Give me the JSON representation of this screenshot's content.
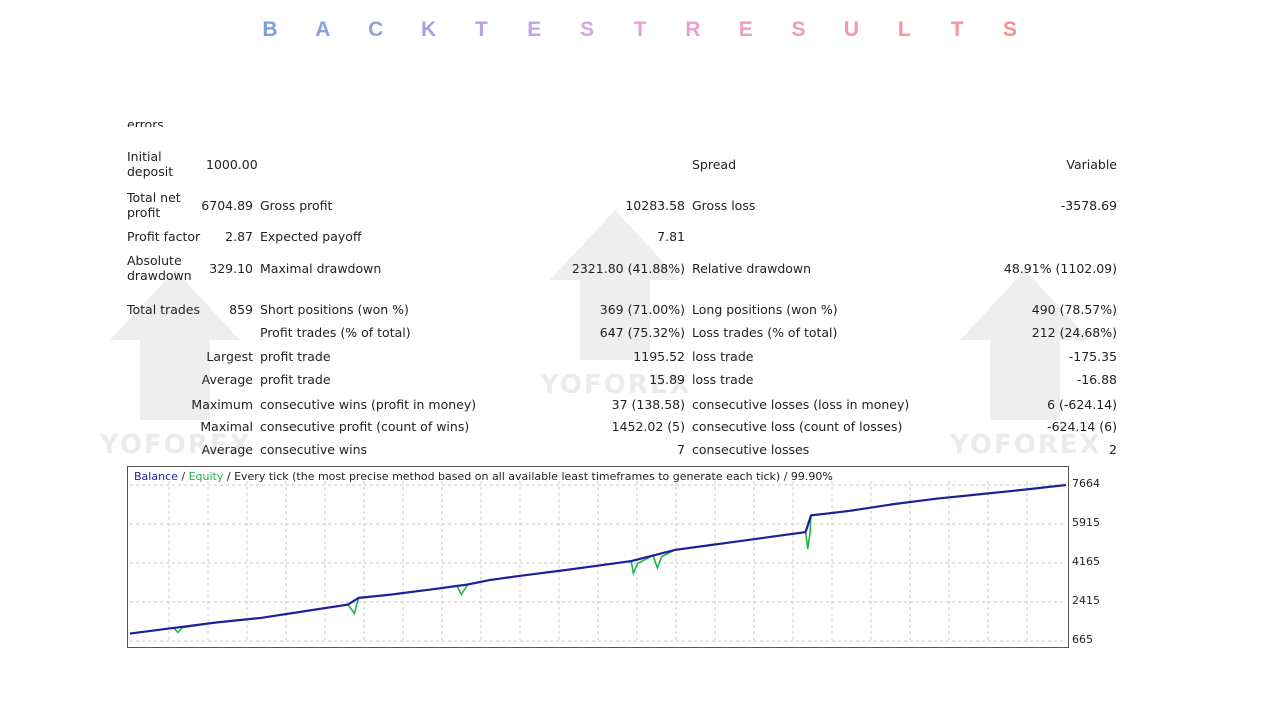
{
  "title": "BACKTEST RESULTS",
  "title_colors": [
    "#7b9fd8",
    "#8a9fe0",
    "#9a9ee2",
    "#a9a0e4",
    "#b8a2e6",
    "#c7a4e6",
    "#d6a6e4",
    "#e0a4dc",
    "#e6a2d2",
    "#ec9ec6",
    "#f09aba",
    "#f496ae",
    "#f694a2",
    "#f89298",
    "#f6908e",
    "#f48e86"
  ],
  "watermark_text": "YOFOREX",
  "partial_row_label": "errors",
  "report": {
    "initial_deposit_label": "Initial deposit",
    "initial_deposit": "1000.00",
    "spread_label": "Spread",
    "spread_value": "Variable",
    "total_net_profit_label": "Total net profit",
    "total_net_profit": "6704.89",
    "gross_profit_label": "Gross profit",
    "gross_profit": "10283.58",
    "gross_loss_label": "Gross loss",
    "gross_loss": "-3578.69",
    "profit_factor_label": "Profit factor",
    "profit_factor": "2.87",
    "expected_payoff_label": "Expected payoff",
    "expected_payoff": "7.81",
    "absolute_drawdown_label": "Absolute drawdown",
    "absolute_drawdown": "329.10",
    "maximal_drawdown_label": "Maximal drawdown",
    "maximal_drawdown": "2321.80 (41.88%)",
    "relative_drawdown_label": "Relative drawdown",
    "relative_drawdown": "48.91% (1102.09)",
    "total_trades_label": "Total trades",
    "total_trades": "859",
    "short_positions_label": "Short positions (won %)",
    "short_positions": "369 (71.00%)",
    "long_positions_label": "Long positions (won %)",
    "long_positions": "490 (78.57%)",
    "profit_trades_label": "Profit trades (% of total)",
    "profit_trades": "647 (75.32%)",
    "loss_trades_label": "Loss trades (% of total)",
    "loss_trades": "212 (24.68%)",
    "largest_label": "Largest",
    "largest_profit_trade_label": "profit trade",
    "largest_profit_trade": "1195.52",
    "largest_loss_trade_label": "loss trade",
    "largest_loss_trade": "-175.35",
    "average_label": "Average",
    "average_profit_trade_label": "profit trade",
    "average_profit_trade": "15.89",
    "average_loss_trade_label": "loss trade",
    "average_loss_trade": "-16.88",
    "maximum_label": "Maximum",
    "max_consec_wins_label": "consecutive wins (profit in money)",
    "max_consec_wins": "37 (138.58)",
    "max_consec_losses_label": "consecutive losses (loss in money)",
    "max_consec_losses": "6 (-624.14)",
    "maximal_label": "Maximal",
    "maximal_consec_profit_label": "consecutive profit (count of wins)",
    "maximal_consec_profit": "1452.02 (5)",
    "maximal_consec_loss_label": "consecutive loss (count of losses)",
    "maximal_consec_loss": "-624.14 (6)",
    "average2_label": "Average",
    "avg_consec_wins_label": "consecutive wins",
    "avg_consec_wins": "7",
    "avg_consec_losses_label": "consecutive losses",
    "avg_consec_losses": "2"
  },
  "chart_header": {
    "balance": "Balance",
    "sep1": " / ",
    "equity": "Equity",
    "rest": " / Every tick (the most precise method based on all available least timeframes to generate each tick) / 99.90%"
  },
  "chart_data": {
    "type": "line",
    "ylim": [
      665,
      7664
    ],
    "yticks": [
      "7664",
      "5915",
      "4165",
      "2415",
      "665"
    ],
    "x_range": [
      0,
      859
    ],
    "grid": true,
    "colors": {
      "balance": "#1f1f9a",
      "equity": "#22b14c"
    },
    "series": [
      {
        "name": "Balance",
        "x": [
          0,
          40,
          80,
          120,
          160,
          200,
          210,
          240,
          280,
          310,
          330,
          360,
          400,
          430,
          460,
          480,
          500,
          530,
          560,
          590,
          620,
          625,
          660,
          700,
          740,
          780,
          820,
          859
        ],
        "y": [
          1000,
          1250,
          1500,
          1700,
          2000,
          2300,
          2600,
          2750,
          3000,
          3200,
          3400,
          3600,
          3850,
          4050,
          4250,
          4500,
          4750,
          4950,
          5150,
          5350,
          5550,
          6300,
          6500,
          6800,
          7050,
          7250,
          7450,
          7664
        ]
      },
      {
        "name": "Equity",
        "x": [
          0,
          40,
          44,
          48,
          80,
          120,
          160,
          200,
          206,
          208,
          210,
          240,
          280,
          300,
          304,
          310,
          330,
          360,
          400,
          430,
          460,
          462,
          466,
          480,
          484,
          488,
          500,
          530,
          560,
          590,
          620,
          622,
          624,
          625,
          660,
          700,
          740,
          780,
          820,
          859
        ],
        "y": [
          1000,
          1250,
          1050,
          1260,
          1500,
          1700,
          2000,
          2300,
          1900,
          2300,
          2600,
          2750,
          3000,
          3150,
          2750,
          3200,
          3400,
          3600,
          3850,
          4050,
          4250,
          3700,
          4150,
          4500,
          3950,
          4450,
          4750,
          4950,
          5150,
          5350,
          5550,
          4800,
          5500,
          6300,
          6500,
          6800,
          7050,
          7250,
          7450,
          7664
        ]
      }
    ]
  }
}
